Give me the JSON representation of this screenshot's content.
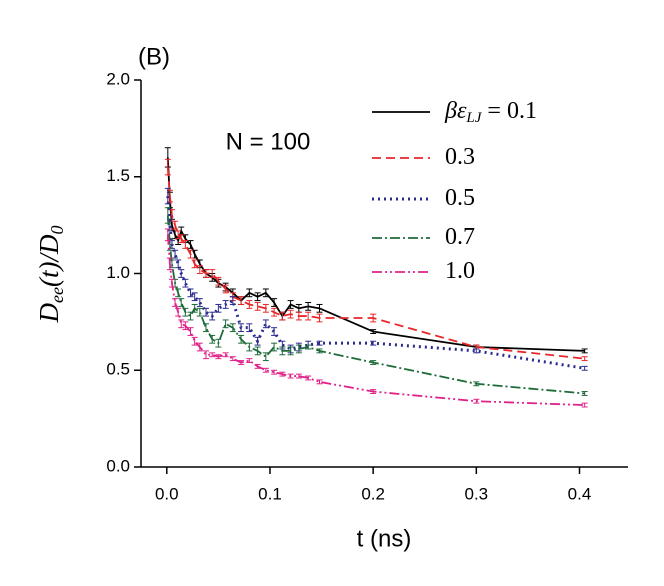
{
  "chart_data": {
    "type": "line",
    "panel_label": "(B)",
    "annotation": "N = 100",
    "x_label": "t (ns)",
    "y_label": [
      "D",
      "ee",
      "(t)/D",
      "0"
    ],
    "legend_title": [
      "βε",
      "LJ",
      "="
    ],
    "x": [
      0.001,
      0.003,
      0.005,
      0.008,
      0.011,
      0.014,
      0.018,
      0.023,
      0.027,
      0.032,
      0.038,
      0.044,
      0.05,
      0.057,
      0.064,
      0.072,
      0.08,
      0.088,
      0.096,
      0.104,
      0.112,
      0.12,
      0.128,
      0.137,
      0.148,
      0.2,
      0.3,
      0.405
    ],
    "series": [
      {
        "name": "0.1",
        "color": "#000000",
        "dash": "none",
        "values": [
          1.6,
          1.38,
          1.25,
          1.2,
          1.17,
          1.22,
          1.18,
          1.15,
          1.1,
          1.05,
          1.0,
          0.98,
          0.95,
          0.93,
          0.9,
          0.86,
          0.9,
          0.88,
          0.9,
          0.85,
          0.78,
          0.84,
          0.82,
          0.83,
          0.82,
          0.7,
          0.62,
          0.6
        ],
        "errors": [
          0.05,
          0.04,
          0.03,
          0.02,
          0.02,
          0.02,
          0.02,
          0.02,
          0.02,
          0.02,
          0.02,
          0.02,
          0.02,
          0.02,
          0.02,
          0.02,
          0.02,
          0.02,
          0.02,
          0.02,
          0.02,
          0.02,
          0.02,
          0.02,
          0.02,
          0.01,
          0.01,
          0.01
        ]
      },
      {
        "name": "0.3",
        "color": "#e8272a",
        "dash": "9,5",
        "values": [
          1.55,
          1.4,
          1.3,
          1.25,
          1.2,
          1.18,
          1.15,
          1.1,
          1.05,
          1.02,
          1.0,
          1.0,
          0.96,
          0.92,
          0.88,
          0.86,
          0.84,
          0.83,
          0.82,
          0.8,
          0.78,
          0.79,
          0.78,
          0.78,
          0.77,
          0.77,
          0.62,
          0.56
        ],
        "errors": [
          0.04,
          0.03,
          0.03,
          0.02,
          0.02,
          0.02,
          0.02,
          0.02,
          0.02,
          0.02,
          0.02,
          0.02,
          0.02,
          0.02,
          0.02,
          0.02,
          0.02,
          0.02,
          0.02,
          0.02,
          0.02,
          0.02,
          0.02,
          0.02,
          0.02,
          0.02,
          0.01,
          0.01
        ]
      },
      {
        "name": "0.5",
        "color": "#2b2b8f",
        "dash": "2,4",
        "values": [
          1.4,
          1.25,
          1.15,
          1.1,
          1.05,
          1.0,
          0.95,
          0.9,
          0.88,
          0.85,
          0.8,
          0.78,
          0.82,
          0.84,
          0.86,
          0.72,
          0.72,
          0.65,
          0.74,
          0.7,
          0.63,
          0.61,
          0.62,
          0.63,
          0.64,
          0.64,
          0.6,
          0.51
        ],
        "errors": [
          0.04,
          0.03,
          0.02,
          0.02,
          0.02,
          0.02,
          0.02,
          0.02,
          0.02,
          0.02,
          0.02,
          0.02,
          0.02,
          0.02,
          0.02,
          0.02,
          0.02,
          0.02,
          0.02,
          0.02,
          0.02,
          0.02,
          0.02,
          0.02,
          0.01,
          0.01,
          0.01,
          0.01
        ]
      },
      {
        "name": "0.7",
        "color": "#1e6b3a",
        "dash": "10,3,2,3",
        "values": [
          1.3,
          1.15,
          1.05,
          0.95,
          0.9,
          0.85,
          0.8,
          0.78,
          0.82,
          0.8,
          0.72,
          0.66,
          0.64,
          0.74,
          0.72,
          0.66,
          0.62,
          0.6,
          0.57,
          0.62,
          0.6,
          0.6,
          0.61,
          0.62,
          0.6,
          0.54,
          0.43,
          0.38
        ],
        "errors": [
          0.04,
          0.03,
          0.02,
          0.02,
          0.02,
          0.02,
          0.02,
          0.02,
          0.02,
          0.02,
          0.02,
          0.02,
          0.02,
          0.02,
          0.02,
          0.02,
          0.02,
          0.02,
          0.02,
          0.02,
          0.02,
          0.02,
          0.02,
          0.01,
          0.01,
          0.01,
          0.01,
          0.01
        ]
      },
      {
        "name": "1.0",
        "color": "#e0218a",
        "dash": "10,3,2,3,2,3",
        "values": [
          1.2,
          1.05,
          0.95,
          0.85,
          0.8,
          0.74,
          0.73,
          0.7,
          0.65,
          0.62,
          0.58,
          0.58,
          0.57,
          0.58,
          0.56,
          0.54,
          0.55,
          0.52,
          0.5,
          0.49,
          0.48,
          0.47,
          0.47,
          0.46,
          0.44,
          0.39,
          0.34,
          0.32
        ],
        "errors": [
          0.03,
          0.03,
          0.02,
          0.02,
          0.02,
          0.02,
          0.02,
          0.02,
          0.02,
          0.02,
          0.02,
          0.01,
          0.01,
          0.01,
          0.01,
          0.01,
          0.01,
          0.01,
          0.01,
          0.01,
          0.01,
          0.01,
          0.01,
          0.01,
          0.01,
          0.01,
          0.01,
          0.01
        ]
      }
    ],
    "xlim": [
      -0.025,
      0.447
    ],
    "ylim": [
      0,
      2.0
    ],
    "xticks": [
      {
        "value": 0,
        "label": "0.0"
      },
      0.1,
      0.2,
      0.3,
      0.4
    ],
    "yticks": [
      {
        "value": 0,
        "label": "0.0"
      },
      0.5,
      {
        "value": 1,
        "label": "1.0"
      },
      1.5,
      {
        "value": 2,
        "label": "2.0"
      }
    ],
    "grid": false
  }
}
